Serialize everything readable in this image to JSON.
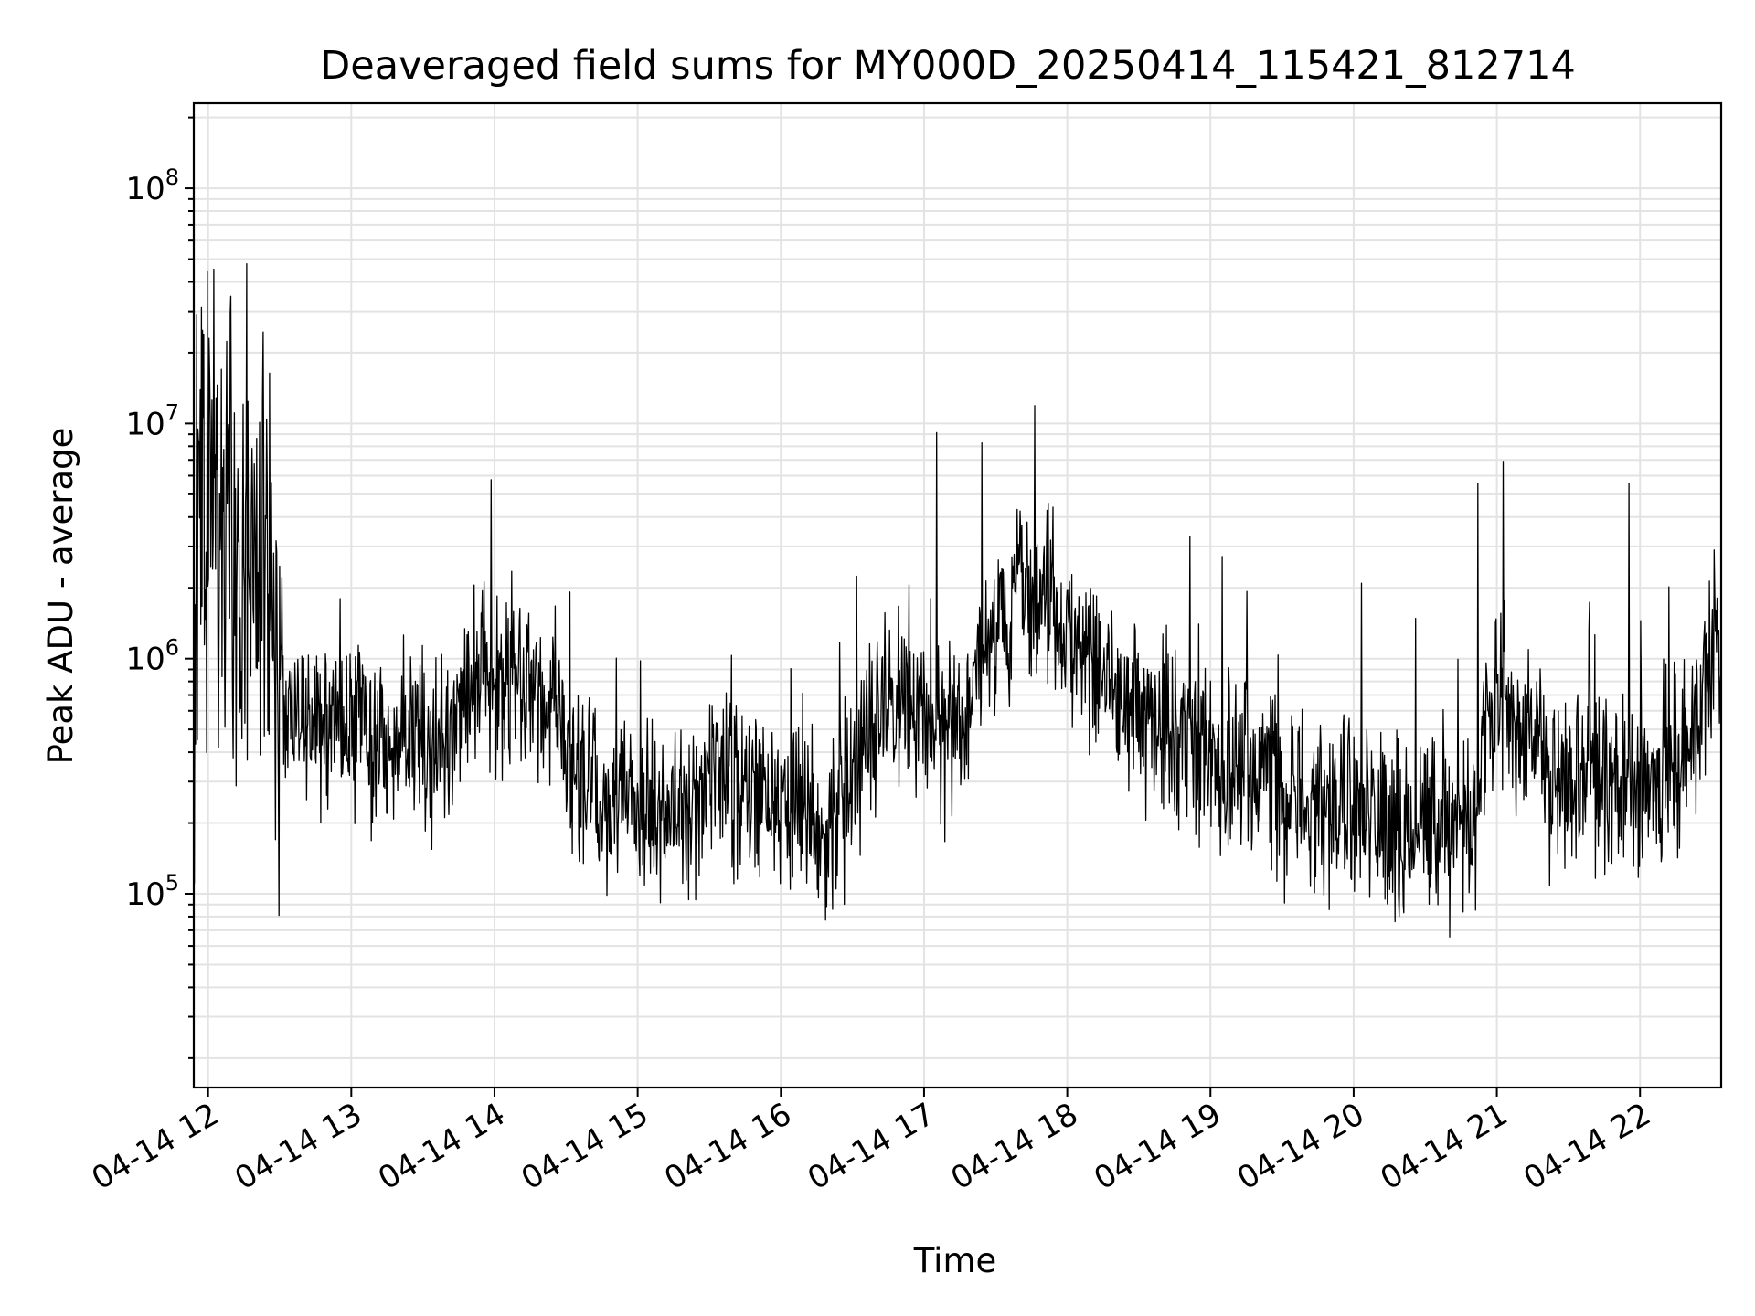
{
  "chart_data": {
    "type": "line",
    "title": "Deaveraged field sums for MY000D_20250414_115421_812714",
    "xlabel": "Time",
    "ylabel": "Peak ADU - average",
    "yscale": "log",
    "ylim": [
      15000,
      230000000
    ],
    "xlim": [
      "2025-04-14 11:54",
      "2025-04-14 22:34"
    ],
    "grid": "major and minor",
    "line_color": "#000000",
    "x_ticks": [
      {
        "t": "2025-04-14 12:00",
        "label": "04-14 12"
      },
      {
        "t": "2025-04-14 13:00",
        "label": "04-14 13"
      },
      {
        "t": "2025-04-14 14:00",
        "label": "04-14 14"
      },
      {
        "t": "2025-04-14 15:00",
        "label": "04-14 15"
      },
      {
        "t": "2025-04-14 16:00",
        "label": "04-14 16"
      },
      {
        "t": "2025-04-14 17:00",
        "label": "04-14 17"
      },
      {
        "t": "2025-04-14 18:00",
        "label": "04-14 18"
      },
      {
        "t": "2025-04-14 19:00",
        "label": "04-14 19"
      },
      {
        "t": "2025-04-14 20:00",
        "label": "04-14 20"
      },
      {
        "t": "2025-04-14 21:00",
        "label": "04-14 21"
      },
      {
        "t": "2025-04-14 22:00",
        "label": "04-14 22"
      }
    ],
    "y_ticks": [
      {
        "value": 100000,
        "base": "10",
        "exp": "5"
      },
      {
        "value": 1000000,
        "base": "10",
        "exp": "6"
      },
      {
        "value": 10000000,
        "base": "10",
        "exp": "7"
      },
      {
        "value": 100000000,
        "base": "10",
        "exp": "8"
      }
    ],
    "series": [
      {
        "x": [
          "2025-04-14 11:54",
          "2025-04-14 11:56",
          "2025-04-14 11:58",
          "2025-04-14 12:00",
          "2025-04-14 12:02",
          "2025-04-14 12:04",
          "2025-04-14 12:06",
          "2025-04-14 12:08",
          "2025-04-14 12:10",
          "2025-04-14 12:12",
          "2025-04-14 12:14",
          "2025-04-14 12:16",
          "2025-04-14 12:18",
          "2025-04-14 12:20",
          "2025-04-14 12:22",
          "2025-04-14 12:24",
          "2025-04-14 12:26",
          "2025-04-14 12:28",
          "2025-04-14 12:30",
          "2025-04-14 12:35",
          "2025-04-14 12:40",
          "2025-04-14 12:45",
          "2025-04-14 12:50",
          "2025-04-14 12:55",
          "2025-04-14 13:00",
          "2025-04-14 13:10",
          "2025-04-14 13:20",
          "2025-04-14 13:30",
          "2025-04-14 13:40",
          "2025-04-14 13:45",
          "2025-04-14 13:50",
          "2025-04-14 13:55",
          "2025-04-14 14:00",
          "2025-04-14 14:10",
          "2025-04-14 14:20",
          "2025-04-14 14:25",
          "2025-04-14 14:30",
          "2025-04-14 14:40",
          "2025-04-14 14:50",
          "2025-04-14 15:00",
          "2025-04-14 15:10",
          "2025-04-14 15:20",
          "2025-04-14 15:25",
          "2025-04-14 15:30",
          "2025-04-14 15:40",
          "2025-04-14 15:50",
          "2025-04-14 16:00",
          "2025-04-14 16:10",
          "2025-04-14 16:20",
          "2025-04-14 16:30",
          "2025-04-14 16:40",
          "2025-04-14 16:50",
          "2025-04-14 17:00",
          "2025-04-14 17:10",
          "2025-04-14 17:20",
          "2025-04-14 17:30",
          "2025-04-14 17:40",
          "2025-04-14 17:50",
          "2025-04-14 18:00",
          "2025-04-14 18:10",
          "2025-04-14 18:20",
          "2025-04-14 18:30",
          "2025-04-14 18:40",
          "2025-04-14 18:50",
          "2025-04-14 19:00",
          "2025-04-14 19:10",
          "2025-04-14 19:20",
          "2025-04-14 19:30",
          "2025-04-14 19:40",
          "2025-04-14 19:50",
          "2025-04-14 20:00",
          "2025-04-14 20:10",
          "2025-04-14 20:20",
          "2025-04-14 20:30",
          "2025-04-14 20:40",
          "2025-04-14 20:50",
          "2025-04-14 21:00",
          "2025-04-14 21:10",
          "2025-04-14 21:20",
          "2025-04-14 21:30",
          "2025-04-14 21:40",
          "2025-04-14 21:50",
          "2025-04-14 22:00",
          "2025-04-14 22:10",
          "2025-04-14 22:20",
          "2025-04-14 22:30"
        ],
        "y": [
          800000,
          3000000,
          6000000,
          2500000,
          4000000,
          3000000,
          5000000,
          3500000,
          4000000,
          3000000,
          3500000,
          5000000,
          3000000,
          2500000,
          3000000,
          2000000,
          1500000,
          1000000,
          800000,
          700000,
          650000,
          600000,
          550000,
          600000,
          550000,
          500000,
          450000,
          420000,
          450000,
          600000,
          800000,
          1000000,
          900000,
          800000,
          700000,
          900000,
          350000,
          300000,
          250000,
          220000,
          230000,
          260000,
          280000,
          300000,
          320000,
          300000,
          250000,
          220000,
          200000,
          300000,
          550000,
          600000,
          700000,
          550000,
          700000,
          1200000,
          1800000,
          2000000,
          1300000,
          900000,
          700000,
          600000,
          500000,
          450000,
          380000,
          350000,
          380000,
          300000,
          250000,
          230000,
          250000,
          220000,
          200000,
          180000,
          200000,
          250000,
          800000,
          500000,
          350000,
          300000,
          320000,
          300000,
          320000,
          330000,
          350000,
          1200000
        ]
      }
    ]
  }
}
